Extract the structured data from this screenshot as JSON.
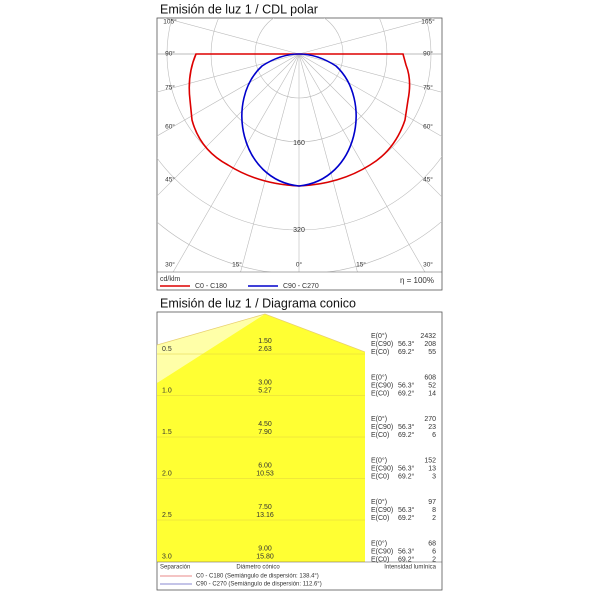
{
  "polar": {
    "title": "Emisión de luz 1 / CDL polar",
    "angles": [
      "105°",
      "90°",
      "75°",
      "60°",
      "45°",
      "30°",
      "15°",
      "0°"
    ],
    "rings": [
      "160",
      "320"
    ],
    "unit": "cd/klm",
    "legend": [
      "C0 - C180",
      "C90 - C270"
    ],
    "efficiency": "η = 100%"
  },
  "cone": {
    "title": "Emisión de luz 1 / Diagrama conico",
    "labels": {
      "e0": "E(0°)",
      "e90": "E(C90)",
      "ec0": "E(C0)",
      "a90": "56.3°",
      "a0": "69.2°"
    },
    "rows": [
      {
        "h": "0.5",
        "d1": "1.50",
        "d2": "2.63",
        "e0": "2432",
        "e90": "208",
        "ec0": "55"
      },
      {
        "h": "1.0",
        "d1": "3.00",
        "d2": "5.27",
        "e0": "608",
        "e90": "52",
        "ec0": "14"
      },
      {
        "h": "1.5",
        "d1": "4.50",
        "d2": "7.90",
        "e0": "270",
        "e90": "23",
        "ec0": "6"
      },
      {
        "h": "2.0",
        "d1": "6.00",
        "d2": "10.53",
        "e0": "152",
        "e90": "13",
        "ec0": "3"
      },
      {
        "h": "2.5",
        "d1": "7.50",
        "d2": "13.16",
        "e0": "97",
        "e90": "8",
        "ec0": "2"
      },
      {
        "h": "3.0",
        "d1": "9.00",
        "d2": "15.80",
        "e0": "68",
        "e90": "6",
        "ec0": "2"
      }
    ],
    "footer": [
      "Separación",
      "Diámetro cónico",
      "Intensidad lumínica"
    ],
    "legend": [
      "C0 - C180 (Semiángulo de dispersión: 138.4°)",
      "C90 - C270 (Semiángulo de dispersión: 112.6°)"
    ]
  }
}
